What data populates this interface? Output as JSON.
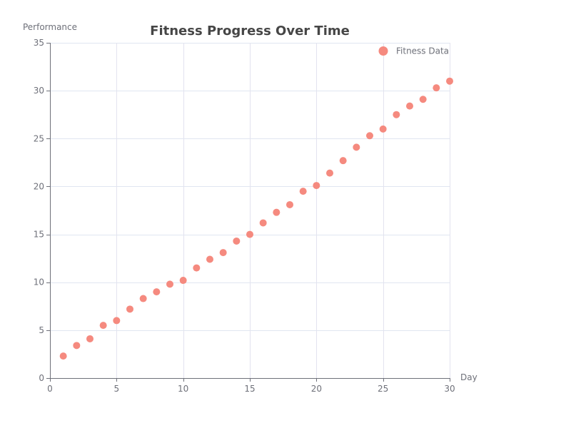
{
  "chart_data": {
    "type": "scatter",
    "title": "Fitness Progress Over Time",
    "xlabel": "Day",
    "ylabel": "Performance",
    "xlim": [
      0,
      30
    ],
    "ylim": [
      0,
      35
    ],
    "x_ticks": [
      0,
      5,
      10,
      15,
      20,
      25,
      30
    ],
    "y_ticks": [
      0,
      5,
      10,
      15,
      20,
      25,
      30,
      35
    ],
    "grid": true,
    "legend_position": "top-right",
    "series": [
      {
        "name": "Fitness Data",
        "color": "#f58a7f",
        "points": [
          {
            "x": 1,
            "y": 2.3
          },
          {
            "x": 2,
            "y": 3.4
          },
          {
            "x": 3,
            "y": 4.1
          },
          {
            "x": 4,
            "y": 5.5
          },
          {
            "x": 5,
            "y": 6.0
          },
          {
            "x": 6,
            "y": 7.2
          },
          {
            "x": 7,
            "y": 8.3
          },
          {
            "x": 8,
            "y": 9.0
          },
          {
            "x": 9,
            "y": 9.8
          },
          {
            "x": 10,
            "y": 10.2
          },
          {
            "x": 11,
            "y": 11.5
          },
          {
            "x": 12,
            "y": 12.4
          },
          {
            "x": 13,
            "y": 13.1
          },
          {
            "x": 14,
            "y": 14.3
          },
          {
            "x": 15,
            "y": 15.0
          },
          {
            "x": 16,
            "y": 16.2
          },
          {
            "x": 17,
            "y": 17.3
          },
          {
            "x": 18,
            "y": 18.1
          },
          {
            "x": 19,
            "y": 19.5
          },
          {
            "x": 20,
            "y": 20.1
          },
          {
            "x": 21,
            "y": 21.4
          },
          {
            "x": 22,
            "y": 22.7
          },
          {
            "x": 23,
            "y": 24.1
          },
          {
            "x": 24,
            "y": 25.3
          },
          {
            "x": 25,
            "y": 26.0
          },
          {
            "x": 26,
            "y": 27.5
          },
          {
            "x": 27,
            "y": 28.4
          },
          {
            "x": 28,
            "y": 29.1
          },
          {
            "x": 29,
            "y": 30.3
          },
          {
            "x": 30,
            "y": 31.0
          }
        ]
      }
    ]
  },
  "colors": {
    "title": "#464646",
    "axis_text": "#6e7079",
    "axis_line": "#6e7079",
    "grid": "#e0e6f1",
    "grid_vertical": "#e3e3ef"
  }
}
